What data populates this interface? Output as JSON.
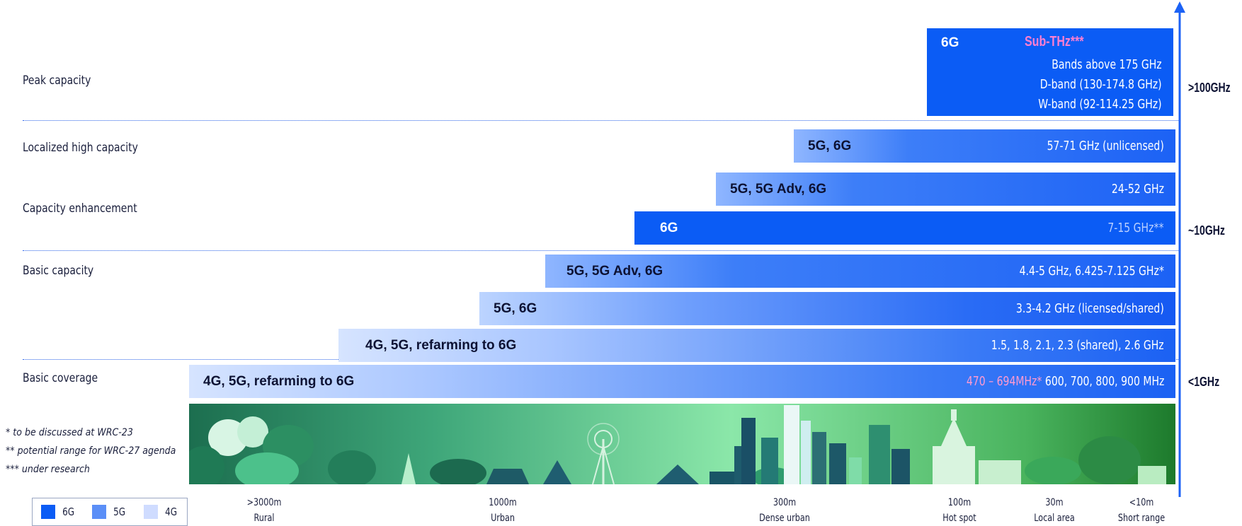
{
  "rows": {
    "peak": "Peak capacity",
    "localized": "Localized high capacity",
    "enhancement": "Capacity enhancement",
    "basic_capacity": "Basic capacity",
    "basic_coverage": "Basic coverage"
  },
  "bands": [
    {
      "tech": "6G",
      "subtitle": "Sub-THz***",
      "lines": [
        "Bands above 175 GHz",
        "D-band (130-174.8 GHz)",
        "W-band (92-114.25 GHz)"
      ]
    },
    {
      "tech": "5G, 6G",
      "freq": "57-71 GHz (unlicensed)"
    },
    {
      "tech": "5G, 5G Adv, 6G",
      "freq": "24-52 GHz"
    },
    {
      "tech": "6G",
      "freq": "7-15 GHz**"
    },
    {
      "tech": "5G, 5G Adv, 6G",
      "freq": "4.4-5 GHz,  6.425-7.125 GHz*"
    },
    {
      "tech": "5G, 6G",
      "freq": "3.3-4.2 GHz (licensed/shared)"
    },
    {
      "tech": "4G, 5G, refarming to 6G",
      "freq": "1.5, 1.8, 2.1, 2.3 (shared),  2.6 GHz"
    },
    {
      "tech": "4G, 5G, refarming to 6G",
      "freq_highlight": "470 – 694MHz*",
      "freq": " 600, 700, 800, 900 MHz"
    }
  ],
  "freq_axis": {
    "high": ">100GHz",
    "mid": "~10GHz",
    "low": "<1GHz"
  },
  "range_axis": [
    {
      "distance": ">3000m",
      "area": "Rural"
    },
    {
      "distance": "1000m",
      "area": "Urban"
    },
    {
      "distance": "300m",
      "area": "Dense urban"
    },
    {
      "distance": "100m",
      "area": "Hot spot"
    },
    {
      "distance": "30m",
      "area": "Local area"
    },
    {
      "distance": "<10m",
      "area": "Short range"
    }
  ],
  "notes": [
    "* to be discussed at WRC-23",
    "** potential range for WRC-27 agenda",
    "*** under research"
  ],
  "legend": [
    {
      "label": "6G",
      "color": "#0b5cf5"
    },
    {
      "label": "5G",
      "color": "#5b8ff7"
    },
    {
      "label": "4G",
      "color": "#cfdcff"
    }
  ],
  "colors": {
    "accent": "#1c62f5",
    "subthz": "#ff7fd0",
    "text": "#0d1233"
  }
}
